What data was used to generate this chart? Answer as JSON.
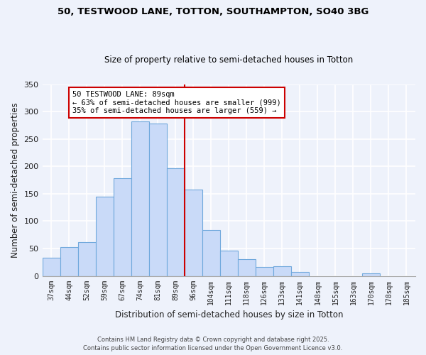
{
  "title": "50, TESTWOOD LANE, TOTTON, SOUTHAMPTON, SO40 3BG",
  "subtitle": "Size of property relative to semi-detached houses in Totton",
  "xlabel": "Distribution of semi-detached houses by size in Totton",
  "ylabel": "Number of semi-detached properties",
  "bin_labels": [
    "37sqm",
    "44sqm",
    "52sqm",
    "59sqm",
    "67sqm",
    "74sqm",
    "81sqm",
    "89sqm",
    "96sqm",
    "104sqm",
    "111sqm",
    "118sqm",
    "126sqm",
    "133sqm",
    "141sqm",
    "148sqm",
    "155sqm",
    "163sqm",
    "170sqm",
    "178sqm",
    "185sqm"
  ],
  "bar_heights": [
    33,
    53,
    62,
    145,
    178,
    282,
    278,
    196,
    158,
    84,
    46,
    31,
    16,
    18,
    7,
    0,
    0,
    0,
    5,
    0,
    0
  ],
  "bar_color": "#c9daf8",
  "bar_edge_color": "#6fa8dc",
  "background_color": "#eef2fb",
  "grid_color": "#ffffff",
  "vline_x_index": 7,
  "vline_color": "#cc0000",
  "annotation_title": "50 TESTWOOD LANE: 89sqm",
  "annotation_line1": "← 63% of semi-detached houses are smaller (999)",
  "annotation_line2": "35% of semi-detached houses are larger (559) →",
  "annotation_box_color": "#ffffff",
  "annotation_box_edge": "#cc0000",
  "footer1": "Contains HM Land Registry data © Crown copyright and database right 2025.",
  "footer2": "Contains public sector information licensed under the Open Government Licence v3.0.",
  "ylim": [
    0,
    350
  ],
  "yticks": [
    0,
    50,
    100,
    150,
    200,
    250,
    300,
    350
  ]
}
